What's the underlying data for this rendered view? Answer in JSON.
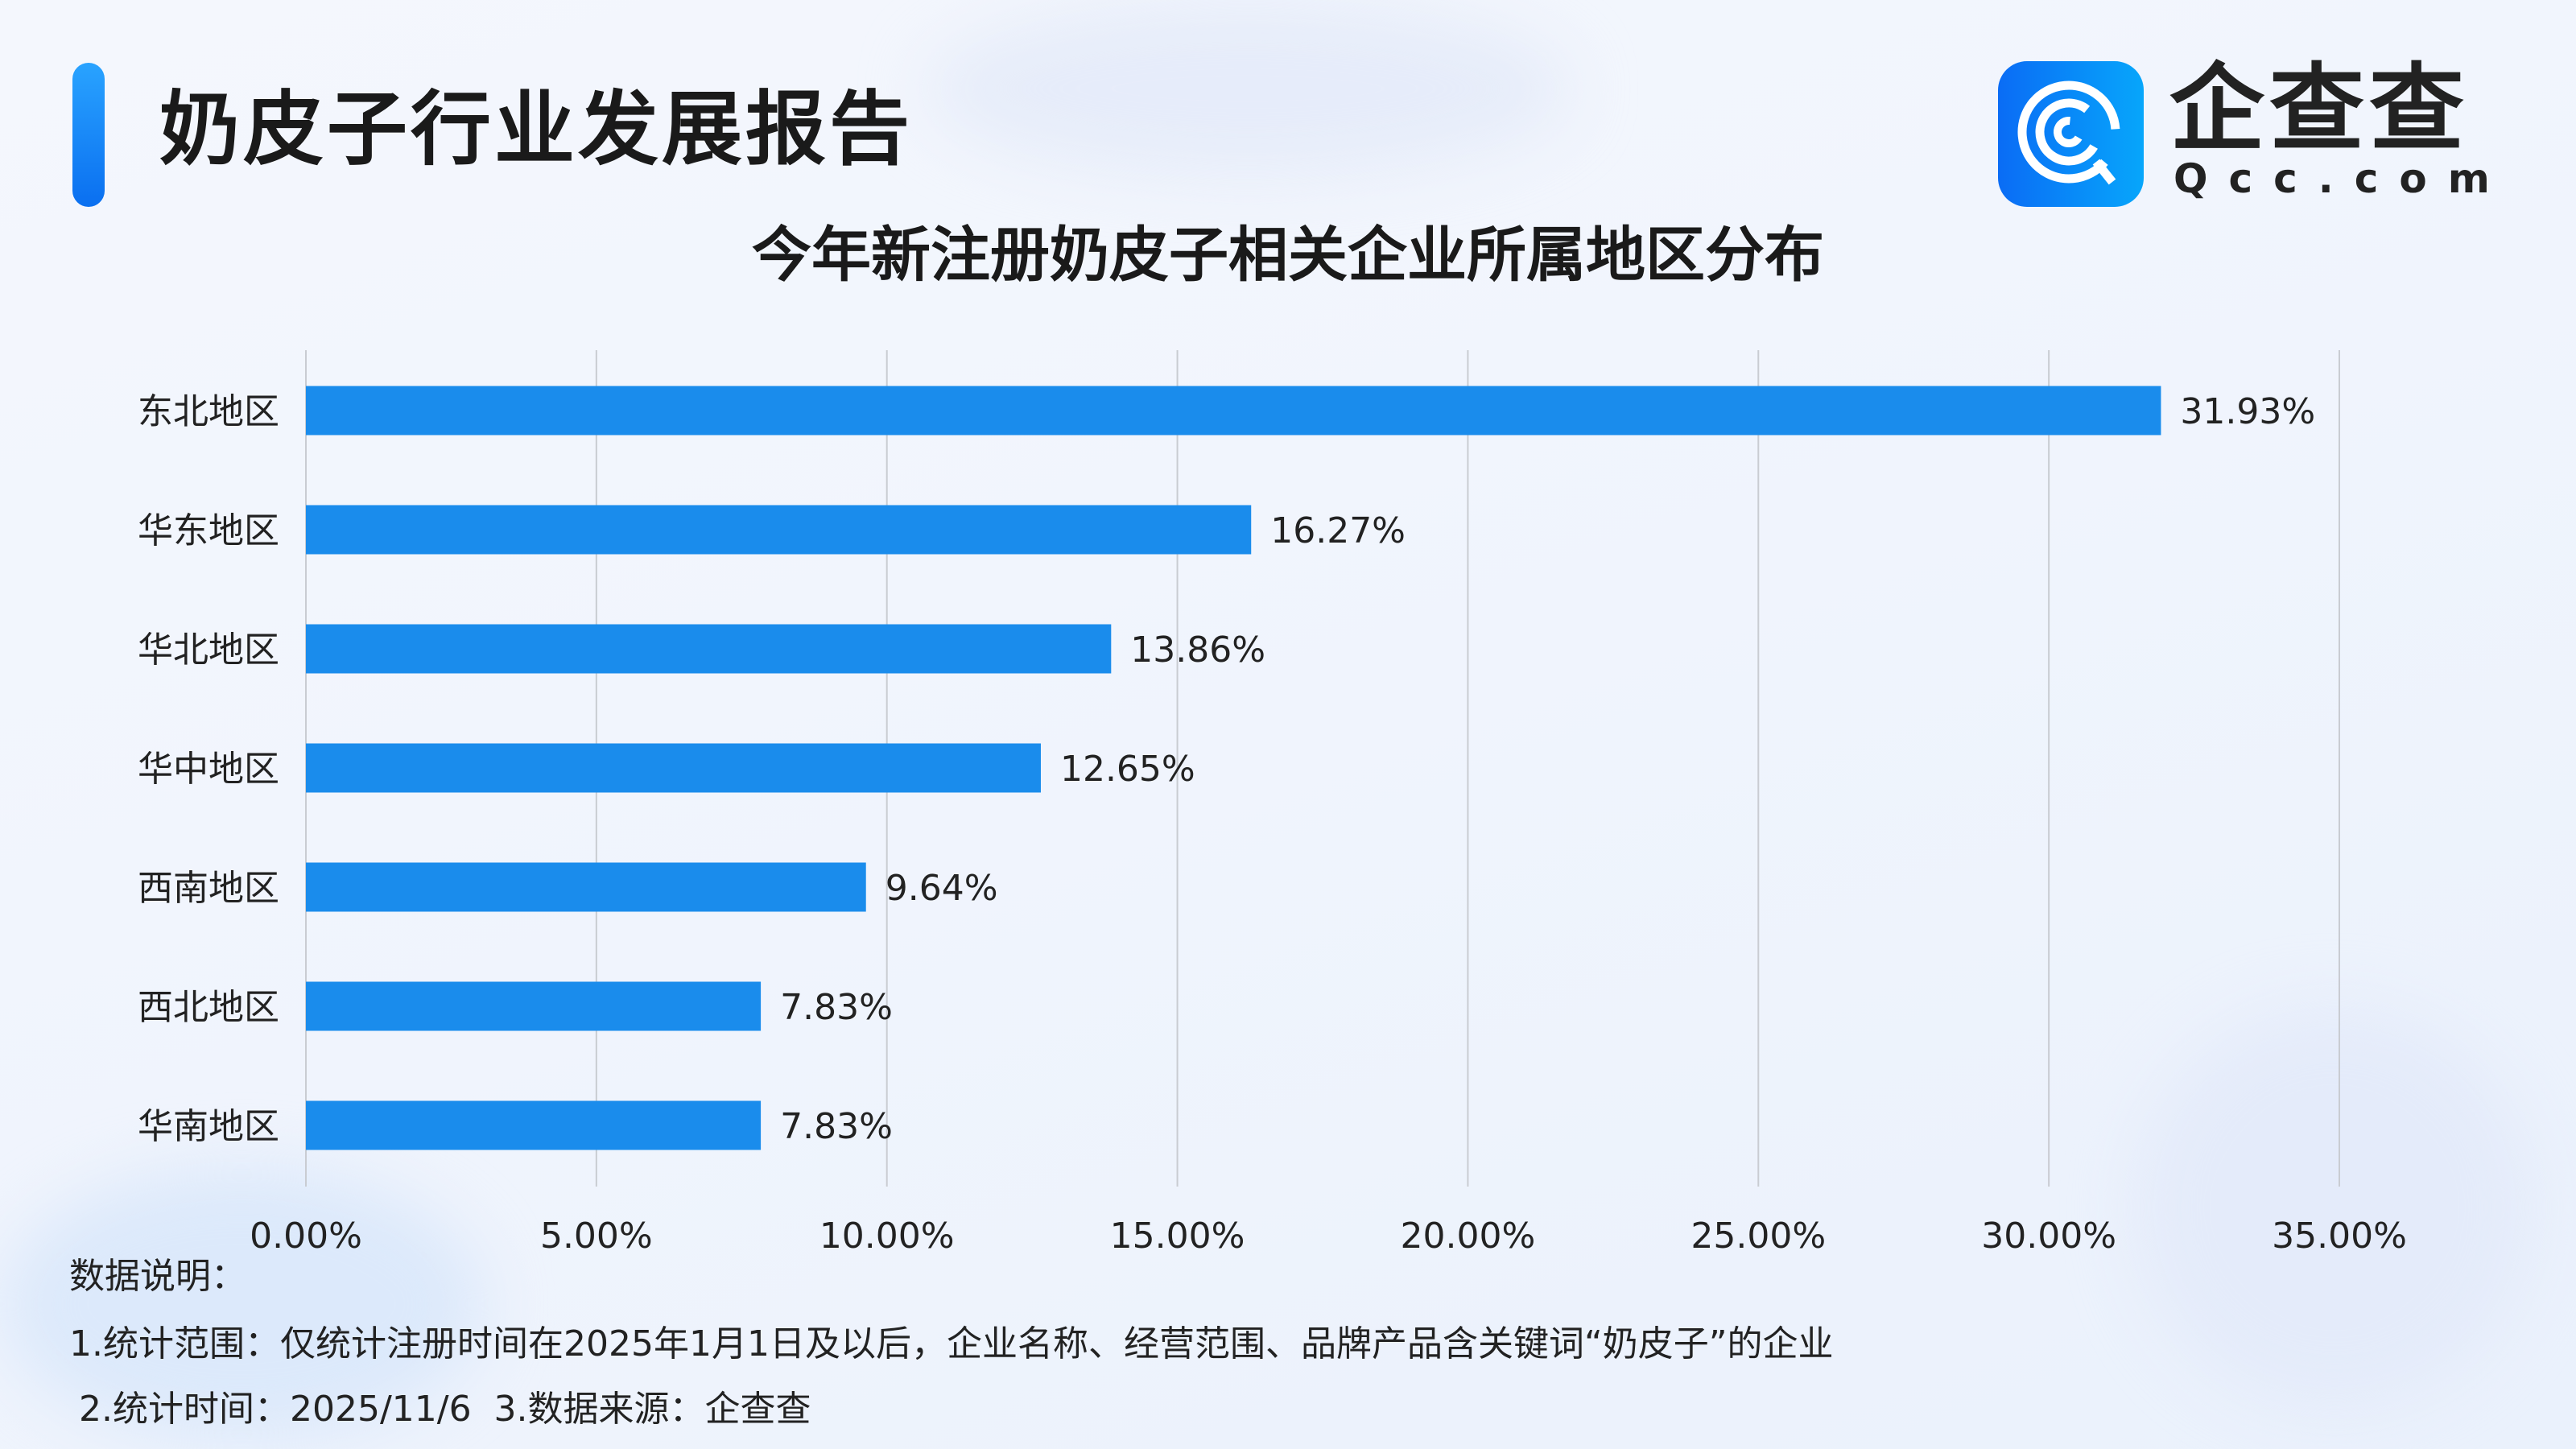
{
  "header": {
    "title": "奶皮子行业发展报告"
  },
  "logo": {
    "name": "企查查",
    "domain": "Qcc.com",
    "brand_color": "#0a85f8"
  },
  "chart_data": {
    "type": "bar",
    "orientation": "horizontal",
    "title": "今年新注册奶皮子相关企业所属地区分布",
    "categories": [
      "东北地区",
      "华东地区",
      "华北地区",
      "华中地区",
      "西南地区",
      "西北地区",
      "华南地区"
    ],
    "values": [
      31.93,
      16.27,
      13.86,
      12.65,
      9.64,
      7.83,
      7.83
    ],
    "value_labels": [
      "31.93%",
      "16.27%",
      "13.86%",
      "12.65%",
      "9.64%",
      "7.83%",
      "7.83%"
    ],
    "xlim": [
      0,
      35
    ],
    "x_ticks": [
      "0.00%",
      "5.00%",
      "10.00%",
      "15.00%",
      "20.00%",
      "25.00%",
      "30.00%",
      "35.00%"
    ],
    "grid": "vertical",
    "bar_color": "#1a8cec"
  },
  "footer": {
    "heading": "数据说明：",
    "line1": "1.统计范围：仅统计注册时间在2025年1月1日及以后，企业名称、经营范围、品牌产品含关键词“奶皮子”的企业",
    "line2": "2.统计时间：2025/11/6  3.数据来源：企查查"
  }
}
